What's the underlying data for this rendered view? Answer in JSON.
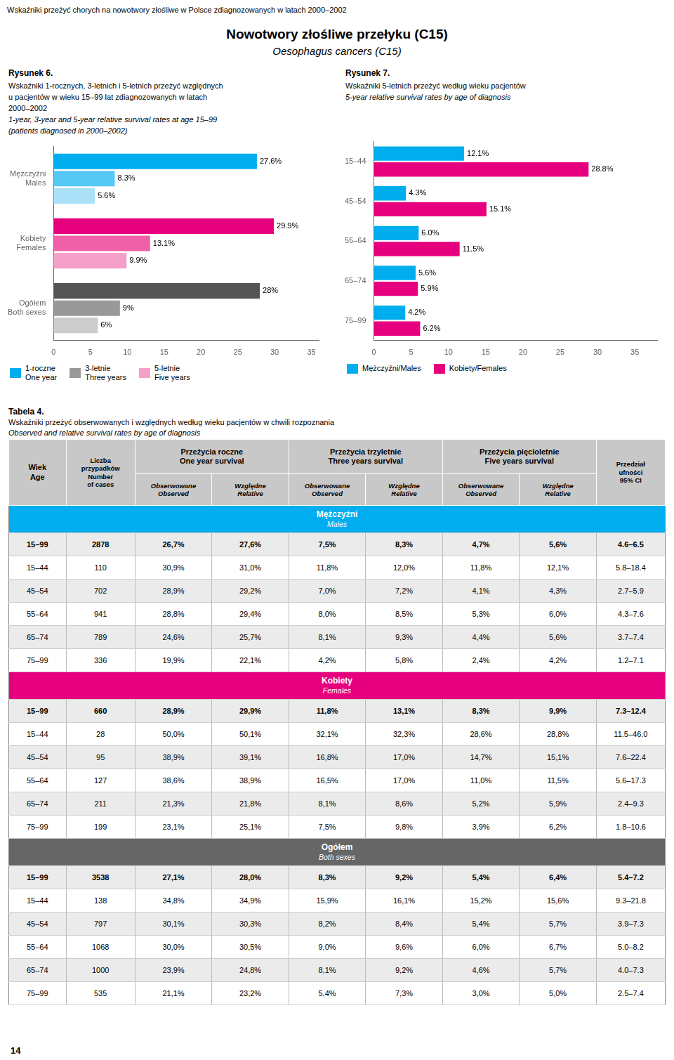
{
  "title": "Nowotwory złośliwe przełyku (C15)",
  "subtitle": "Oesophagus cancers (C15)",
  "annotations": [
    "Wskaźniki przeżyć chorych na nowotwory złośliwe w Polsce zdiagnozowanych w latach 2000–2002",
    "14"
  ],
  "chart_data": [
    {
      "type": "bar",
      "orientation": "horizontal",
      "title": "Rysunek 6.",
      "subtitle": [
        "Wskaźniki 1-rocznych, 3-letnich i 5-letnich przeżyć względnych\nu pacjentów w wieku 15–99 lat zdiagnozowanych w latach\n2000–2002",
        "1-year, 3-year and 5-year relative survival rates at age 15–99\n(patients diagnosed in 2000–2002)"
      ],
      "categories": [
        "Mężczyźni\nMales",
        "Kobiety\nFemales",
        "Ogółem\nBoth sexes"
      ],
      "series": [
        {
          "name": "1-roczne\nOne year",
          "color": "#00AEEF",
          "colors": [
            "#00AEEF",
            "#E6007E",
            "#555555"
          ],
          "values": [
            27.6,
            29.9,
            28.0
          ],
          "value_labels": [
            "27.6%",
            "29.9%",
            "28%"
          ]
        },
        {
          "name": "3-letnie\nThree years",
          "color": "#999999",
          "colors": [
            "#55C8F5",
            "#F060A8",
            "#999999"
          ],
          "values": [
            8.3,
            13.1,
            9.0
          ],
          "value_labels": [
            "8.3%",
            "13.1%",
            "9%"
          ]
        },
        {
          "name": "5-letnie\nFive years",
          "color": "#F4A0C8",
          "colors": [
            "#AAE0F8",
            "#F4A0C8",
            "#CCCCCC"
          ],
          "values": [
            5.6,
            9.9,
            6.0
          ],
          "value_labels": [
            "5.6%",
            "9.9%",
            "6%"
          ]
        }
      ],
      "xlim": [
        0,
        36
      ],
      "xticks": [
        0,
        5,
        10,
        15,
        20,
        25,
        30,
        35
      ],
      "grid": false,
      "legend": "lower left",
      "data_labels": true
    },
    {
      "type": "bar",
      "orientation": "horizontal",
      "title": "Rysunek 7.",
      "subtitle": [
        "Wskaźniki 5-letnich przeżyć według wieku pacjentów",
        "5-year relative survival rates by age of diagnosis"
      ],
      "categories": [
        "15–44",
        "45–54",
        "55–64",
        "65–74",
        "75–99"
      ],
      "series": [
        {
          "name": "Mężczyźni/Males",
          "color": "#00AEEF",
          "values": [
            12.1,
            4.3,
            6.0,
            5.6,
            4.2
          ],
          "value_labels": [
            "12.1%",
            "4.3%",
            "6.0%",
            "5.6%",
            "4.2%"
          ]
        },
        {
          "name": "Kobiety/Females",
          "color": "#E6007E",
          "values": [
            28.8,
            15.1,
            11.5,
            5.9,
            6.2
          ],
          "value_labels": [
            "28.8%",
            "15.1%",
            "11.5%",
            "5.9%",
            "6.2%"
          ]
        }
      ],
      "xlim": [
        0,
        38
      ],
      "xticks": [
        0,
        5,
        10,
        15,
        20,
        25,
        30,
        35
      ],
      "grid": false,
      "legend": "lower left",
      "data_labels": true
    },
    {
      "type": "table",
      "title": "Tabela 4.",
      "subtitle": [
        "Wskaźniki przeżyć obserwowanych i względnych według wieku pacjentów w chwili rozpoznania",
        "Observed and relative survival rates by age of diagnosis"
      ],
      "columns": [
        "Wiek\nAge",
        "Liczba\nprzypadków\nNumber\nof cases",
        {
          "label": "Przeżycia roczne\nOne year survival",
          "columns": [
            "Obserwowane\nObserved",
            "Względne\nRelative"
          ]
        },
        {
          "label": "Przeżycia trzyletnie\nThree years survival",
          "columns": [
            "Obserwowane\nObserved",
            "Względne\nRelative"
          ]
        },
        {
          "label": "Przeżycia pięcioletnie\nFive years survival",
          "columns": [
            "Obserwowane\nObserved",
            "Względne\nRelative"
          ]
        },
        "Przedział\nufności\n95% CI"
      ],
      "sections": [
        {
          "name": "Mężczyźni",
          "subtitle": "Males",
          "color": "#00AEEF",
          "rows": [
            [
              "15–99",
              "2878",
              "26,7%",
              "27,6%",
              "7,5%",
              "8,3%",
              "4,7%",
              "5,6%",
              "4.6–6.5"
            ],
            [
              "15–44",
              "110",
              "30,9%",
              "31,0%",
              "11,8%",
              "12,0%",
              "11,8%",
              "12,1%",
              "5.8–18.4"
            ],
            [
              "45–54",
              "702",
              "28,9%",
              "29,2%",
              "7,0%",
              "7,2%",
              "4,1%",
              "4,3%",
              "2.7–5.9"
            ],
            [
              "55–64",
              "941",
              "28,8%",
              "29,4%",
              "8,0%",
              "8,5%",
              "5,3%",
              "6,0%",
              "4.3–7.6"
            ],
            [
              "65–74",
              "789",
              "24,6%",
              "25,7%",
              "8,1%",
              "9,3%",
              "4,4%",
              "5,6%",
              "3.7–7.4"
            ],
            [
              "75–99",
              "336",
              "19,9%",
              "22,1%",
              "4,2%",
              "5,8%",
              "2,4%",
              "4,2%",
              "1.2–7.1"
            ]
          ]
        },
        {
          "name": "Kobiety",
          "subtitle": "Females",
          "color": "#E6007E",
          "rows": [
            [
              "15–99",
              "660",
              "28,9%",
              "29,9%",
              "11,8%",
              "13,1%",
              "8,3%",
              "9,9%",
              "7.3–12.4"
            ],
            [
              "15–44",
              "28",
              "50,0%",
              "50,1%",
              "32,1%",
              "32,3%",
              "28,6%",
              "28,8%",
              "11.5–46.0"
            ],
            [
              "45–54",
              "95",
              "38,9%",
              "39,1%",
              "16,8%",
              "17,0%",
              "14,7%",
              "15,1%",
              "7.6–22.4"
            ],
            [
              "55–64",
              "127",
              "38,6%",
              "38,9%",
              "16,5%",
              "17,0%",
              "11,0%",
              "11,5%",
              "5.6–17.3"
            ],
            [
              "65–74",
              "211",
              "21,3%",
              "21,8%",
              "8,1%",
              "8,6%",
              "5,2%",
              "5,9%",
              "2.4–9.3"
            ],
            [
              "75–99",
              "199",
              "23,1%",
              "25,1%",
              "7,5%",
              "9,8%",
              "3,9%",
              "6,2%",
              "1.8–10.6"
            ]
          ]
        },
        {
          "name": "Ogółem",
          "subtitle": "Both sexes",
          "color": "#666666",
          "rows": [
            [
              "15–99",
              "3538",
              "27,1%",
              "28,0%",
              "8,3%",
              "9,2%",
              "5,4%",
              "6,4%",
              "5.4–7.2"
            ],
            [
              "15–44",
              "138",
              "34,8%",
              "34,9%",
              "15,9%",
              "16,1%",
              "15,2%",
              "15,6%",
              "9.3–21.8"
            ],
            [
              "45–54",
              "797",
              "30,1%",
              "30,3%",
              "8,2%",
              "8,4%",
              "5,4%",
              "5,7%",
              "3.9–7.3"
            ],
            [
              "55–64",
              "1068",
              "30,0%",
              "30,5%",
              "9,0%",
              "9,6%",
              "6,0%",
              "6,7%",
              "5.0–8.2"
            ],
            [
              "65–74",
              "1000",
              "23,9%",
              "24,8%",
              "8,1%",
              "9,2%",
              "4,6%",
              "5,7%",
              "4.0–7.3"
            ],
            [
              "75–99",
              "535",
              "21,1%",
              "23,2%",
              "5,4%",
              "7,3%",
              "3,0%",
              "5,0%",
              "2.5–7.4"
            ]
          ]
        }
      ]
    }
  ]
}
